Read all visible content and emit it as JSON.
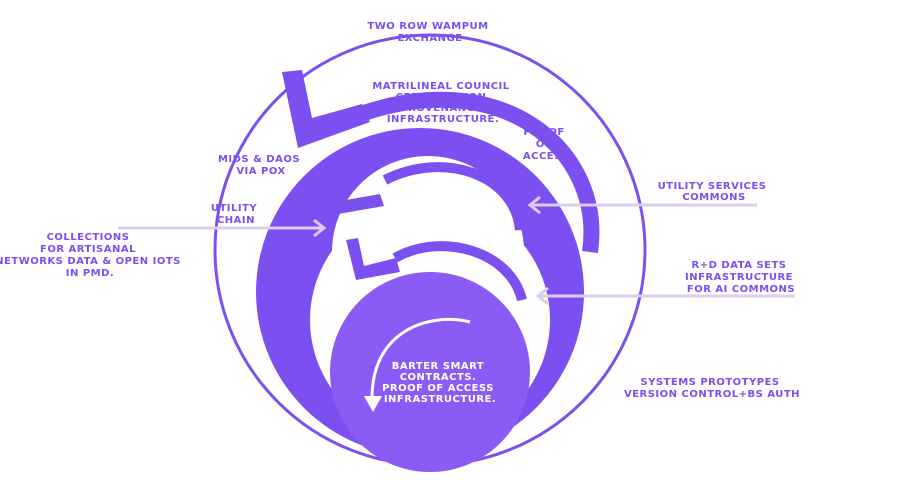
{
  "colors": {
    "purple": "#7b4ff0",
    "inner_purple": "#8a5cf5",
    "lavender": "#dccdf5",
    "white": "#ffffff"
  },
  "labels": {
    "two_row_wampum": [
      "TWO ROW WAMPUM",
      "EXCHANGE"
    ],
    "matrilineal": [
      "MATRILINEAL COUNCIL",
      "CERTIFICATION",
      "PROVENANCE",
      "INFRASTRUCTURE."
    ],
    "proof_of_access": [
      "PROOF",
      "OF",
      "ACCESS"
    ],
    "mids_daos": [
      "MIDS & DAOS",
      "VIA POX"
    ],
    "utility_services": [
      "UTILITY SERVICES",
      "COMMONS"
    ],
    "utility_chain": [
      "UTILITY",
      "CHAIN"
    ],
    "collections": [
      "COLLECTIONS",
      "FOR ARTISANAL",
      "NETWORKS DATA & OPEN IOTS",
      "IN PMD."
    ],
    "rd_data_sets": [
      "R+D DATA SETS",
      "INFRASTRUCTURE",
      "FOR AI COMMONS"
    ],
    "barter": [
      "BARTER SMART",
      "CONTRACTS.",
      "PROOF OF ACCESS",
      "INFRASTRUCTURE."
    ],
    "systems_prototypes": [
      "SYSTEMS PROTOTYPES",
      "VERSION CONTROL+BS AUTH"
    ]
  }
}
